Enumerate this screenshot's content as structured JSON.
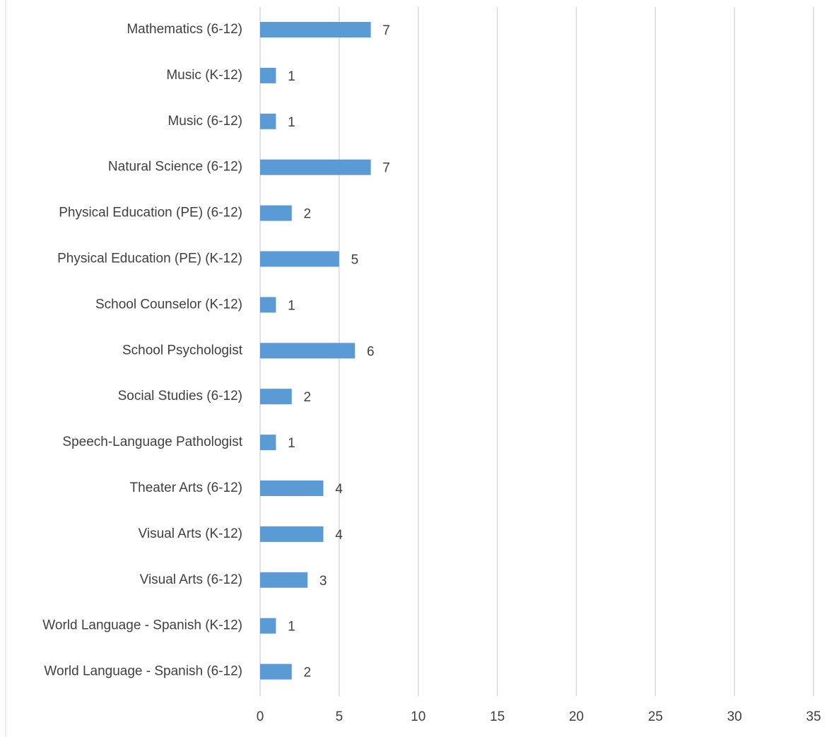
{
  "chart_data": {
    "type": "bar",
    "orientation": "horizontal",
    "categories": [
      "Mathematics (6-12)",
      "Music (K-12)",
      "Music (6-12)",
      "Natural Science (6-12)",
      "Physical Education (PE) (6-12)",
      "Physical Education (PE) (K-12)",
      "School Counselor (K-12)",
      "School Psychologist",
      "Social Studies (6-12)",
      "Speech-Language Pathologist",
      "Theater Arts (6-12)",
      "Visual Arts (K-12)",
      "Visual Arts (6-12)",
      "World Language - Spanish (K-12)",
      "World Language - Spanish (6-12)"
    ],
    "values": [
      7,
      1,
      1,
      7,
      2,
      5,
      1,
      6,
      2,
      1,
      4,
      4,
      3,
      1,
      2
    ],
    "color": "#5b9bd5",
    "xlim": [
      0,
      35
    ],
    "xticks": [
      0,
      5,
      10,
      15,
      20,
      25,
      30,
      35
    ],
    "grid": true
  }
}
